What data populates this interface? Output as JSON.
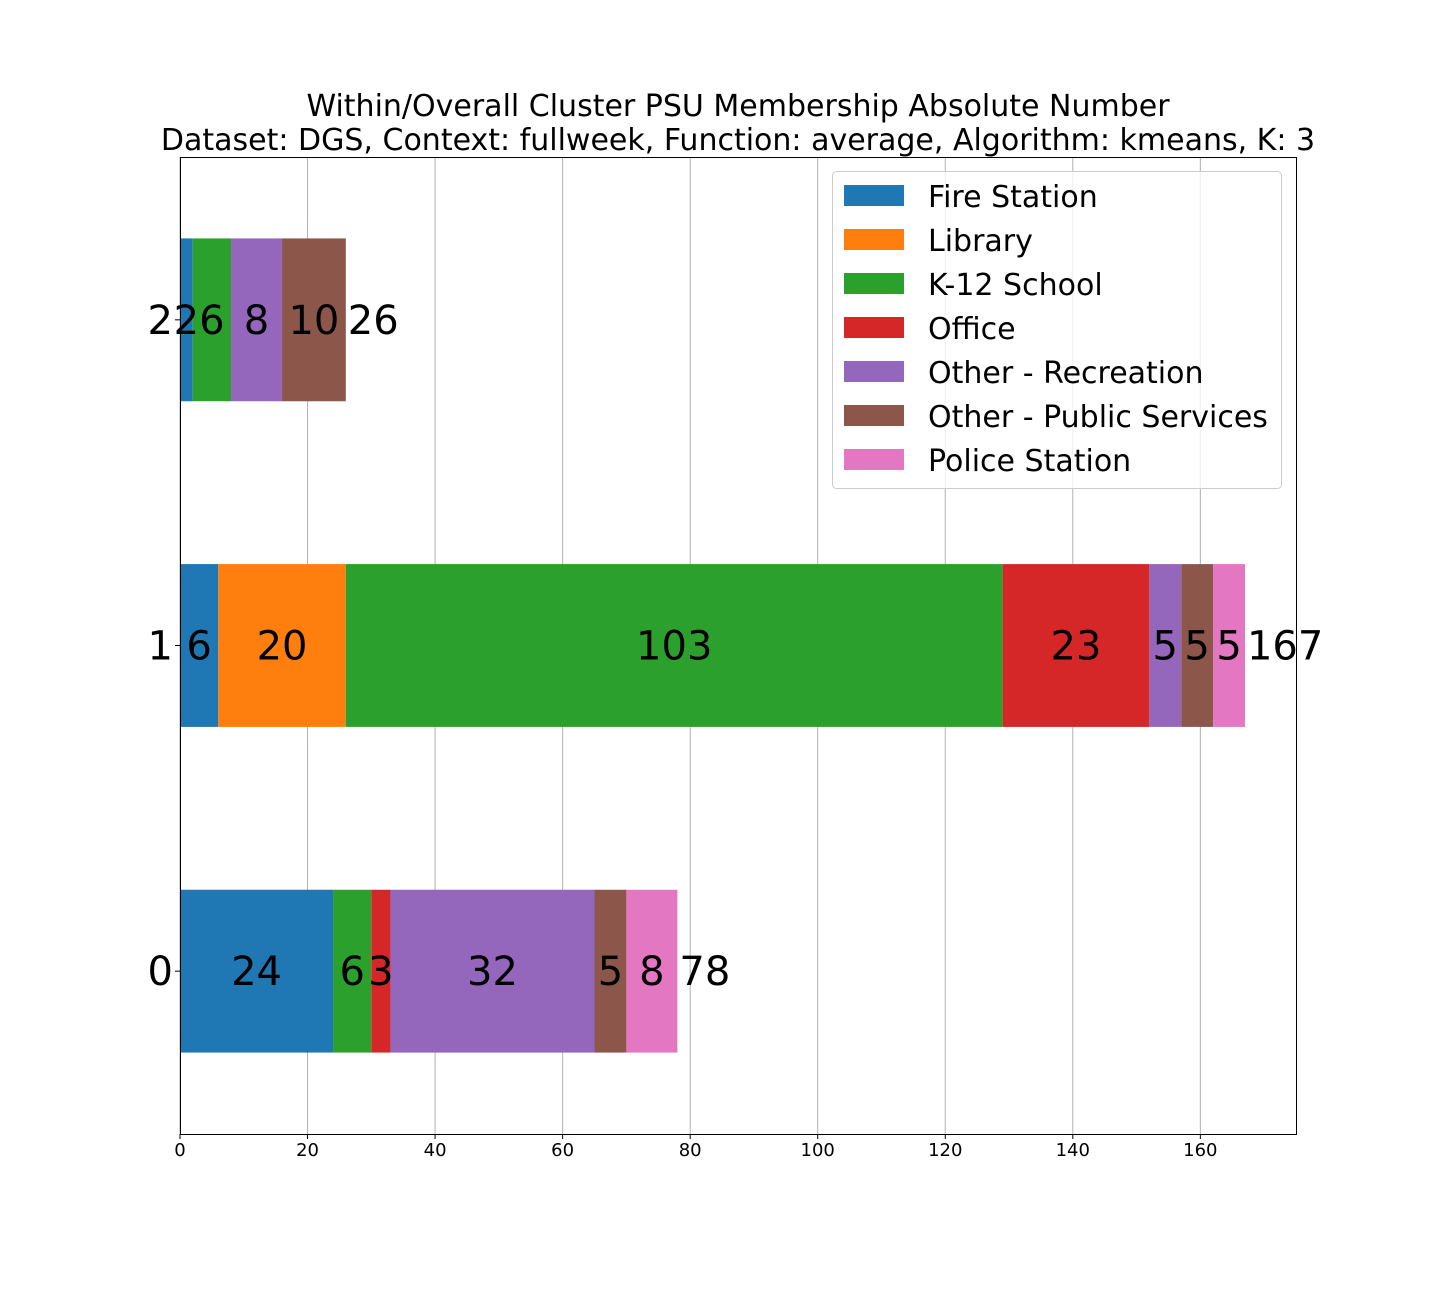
{
  "chart_data": {
    "type": "bar",
    "orientation": "horizontal",
    "stacked": true,
    "title": "Within/Overall Cluster PSU Membership Absolute Number",
    "subtitle": "Dataset: DGS, Context: fullweek, Function: average, Algorithm: kmeans, K: 3",
    "xlabel": "",
    "ylabel": "",
    "categories": [
      "0",
      "1",
      "2"
    ],
    "xlim": [
      0,
      175
    ],
    "x_ticks": [
      0,
      20,
      40,
      60,
      80,
      100,
      120,
      140,
      160
    ],
    "grid": "vertical",
    "legend_position": "top-right",
    "series": [
      {
        "name": "Fire Station",
        "color": "#1f77b4",
        "values": [
          24,
          6,
          2
        ]
      },
      {
        "name": "Library",
        "color": "#ff7f0e",
        "values": [
          0,
          20,
          0
        ]
      },
      {
        "name": "K-12 School",
        "color": "#2ca02c",
        "values": [
          6,
          103,
          6
        ]
      },
      {
        "name": "Office",
        "color": "#d62728",
        "values": [
          3,
          23,
          0
        ]
      },
      {
        "name": "Other - Recreation",
        "color": "#9467bd",
        "values": [
          32,
          5,
          8
        ]
      },
      {
        "name": "Other - Public Services",
        "color": "#8c564b",
        "values": [
          5,
          5,
          10
        ]
      },
      {
        "name": "Police Station",
        "color": "#e377c2",
        "values": [
          8,
          5,
          0
        ]
      }
    ],
    "totals": [
      78,
      167,
      26
    ]
  }
}
